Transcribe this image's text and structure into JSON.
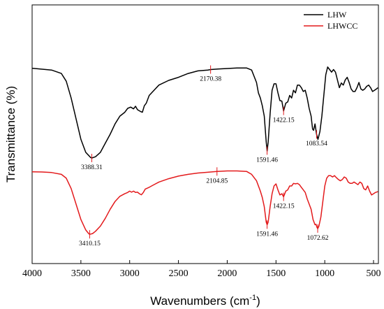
{
  "chart_data": {
    "type": "line",
    "title": "",
    "xlabel": "Wavenumbers (cm",
    "xlabel_sup": "-1",
    "xlabel_suffix": ")",
    "ylabel": "Transmittance (%)",
    "xlim": [
      4000,
      450
    ],
    "x_reversed": true,
    "ylim": [
      0,
      100
    ],
    "y_ticks_labeled": false,
    "x_ticks": [
      "4000",
      "3500",
      "3000",
      "2500",
      "2000",
      "1500",
      "1000",
      "500"
    ],
    "legend_position": "top-right",
    "grid": false,
    "series": [
      {
        "name": "LHW",
        "color": "#000000",
        "points": [
          [
            4000,
            75.5
          ],
          [
            3800,
            74.8
          ],
          [
            3700,
            73.5
          ],
          [
            3650,
            70.5
          ],
          [
            3600,
            64
          ],
          [
            3550,
            56
          ],
          [
            3500,
            48
          ],
          [
            3450,
            43
          ],
          [
            3400,
            41
          ],
          [
            3388,
            40.8
          ],
          [
            3350,
            41.3
          ],
          [
            3300,
            43
          ],
          [
            3250,
            46.5
          ],
          [
            3200,
            50
          ],
          [
            3150,
            54
          ],
          [
            3100,
            57
          ],
          [
            3050,
            58.5
          ],
          [
            3020,
            60
          ],
          [
            2990,
            60.5
          ],
          [
            2960,
            59.8
          ],
          [
            2940,
            60.8
          ],
          [
            2920,
            59.5
          ],
          [
            2890,
            58.8
          ],
          [
            2870,
            58.5
          ],
          [
            2850,
            61
          ],
          [
            2830,
            62
          ],
          [
            2800,
            65
          ],
          [
            2700,
            69
          ],
          [
            2600,
            70.8
          ],
          [
            2500,
            72
          ],
          [
            2400,
            73.5
          ],
          [
            2300,
            74.5
          ],
          [
            2200,
            74.8
          ],
          [
            2170,
            75
          ],
          [
            2100,
            75.2
          ],
          [
            2000,
            75.4
          ],
          [
            1900,
            75.6
          ],
          [
            1800,
            75.6
          ],
          [
            1750,
            74.8
          ],
          [
            1700,
            70
          ],
          [
            1680,
            66
          ],
          [
            1660,
            64
          ],
          [
            1640,
            61
          ],
          [
            1620,
            57
          ],
          [
            1600,
            47
          ],
          [
            1591,
            43.5
          ],
          [
            1580,
            47
          ],
          [
            1560,
            58
          ],
          [
            1540,
            67
          ],
          [
            1520,
            69.5
          ],
          [
            1500,
            69.5
          ],
          [
            1480,
            66
          ],
          [
            1460,
            63
          ],
          [
            1440,
            62.8
          ],
          [
            1422,
            59
          ],
          [
            1400,
            62
          ],
          [
            1380,
            62.5
          ],
          [
            1360,
            65
          ],
          [
            1340,
            64
          ],
          [
            1320,
            67
          ],
          [
            1300,
            66
          ],
          [
            1280,
            69
          ],
          [
            1260,
            69
          ],
          [
            1240,
            68
          ],
          [
            1220,
            66.5
          ],
          [
            1200,
            67
          ],
          [
            1180,
            64
          ],
          [
            1160,
            60
          ],
          [
            1140,
            57
          ],
          [
            1125,
            52
          ],
          [
            1115,
            51.5
          ],
          [
            1100,
            54
          ],
          [
            1084,
            50
          ],
          [
            1070,
            48
          ],
          [
            1050,
            51
          ],
          [
            1030,
            57
          ],
          [
            1010,
            65
          ],
          [
            990,
            73
          ],
          [
            970,
            76
          ],
          [
            950,
            75
          ],
          [
            930,
            74
          ],
          [
            910,
            75
          ],
          [
            890,
            74
          ],
          [
            870,
            71
          ],
          [
            850,
            68
          ],
          [
            830,
            69.8
          ],
          [
            810,
            69
          ],
          [
            790,
            71
          ],
          [
            770,
            72
          ],
          [
            750,
            70
          ],
          [
            730,
            67.5
          ],
          [
            710,
            66.5
          ],
          [
            690,
            66.5
          ],
          [
            670,
            68
          ],
          [
            650,
            70
          ],
          [
            630,
            67.5
          ],
          [
            610,
            67
          ],
          [
            590,
            67.5
          ],
          [
            570,
            68.5
          ],
          [
            550,
            69
          ],
          [
            530,
            68
          ],
          [
            510,
            66.5
          ],
          [
            490,
            67
          ],
          [
            470,
            67.5
          ],
          [
            455,
            68
          ]
        ]
      },
      {
        "name": "LHWCC",
        "color": "#e31a1c",
        "points": [
          [
            4000,
            35.5
          ],
          [
            3900,
            35.4
          ],
          [
            3800,
            35.2
          ],
          [
            3700,
            34.5
          ],
          [
            3650,
            33
          ],
          [
            3600,
            29
          ],
          [
            3550,
            23
          ],
          [
            3500,
            17
          ],
          [
            3450,
            13
          ],
          [
            3420,
            11.6
          ],
          [
            3410,
            11.3
          ],
          [
            3380,
            11.6
          ],
          [
            3350,
            12.5
          ],
          [
            3300,
            14.5
          ],
          [
            3250,
            17.5
          ],
          [
            3200,
            21
          ],
          [
            3150,
            24
          ],
          [
            3100,
            26
          ],
          [
            3050,
            27
          ],
          [
            3020,
            27.5
          ],
          [
            3000,
            28
          ],
          [
            2980,
            27.6
          ],
          [
            2960,
            28
          ],
          [
            2940,
            27.5
          ],
          [
            2920,
            27.6
          ],
          [
            2900,
            27
          ],
          [
            2880,
            26.6
          ],
          [
            2860,
            27.5
          ],
          [
            2840,
            28.8
          ],
          [
            2800,
            29.5
          ],
          [
            2750,
            30.5
          ],
          [
            2700,
            31.5
          ],
          [
            2600,
            32.8
          ],
          [
            2500,
            33.8
          ],
          [
            2400,
            34.5
          ],
          [
            2300,
            35
          ],
          [
            2200,
            35.3
          ],
          [
            2105,
            35.6
          ],
          [
            2000,
            35.8
          ],
          [
            1900,
            35.8
          ],
          [
            1800,
            35.6
          ],
          [
            1750,
            34.5
          ],
          [
            1700,
            32
          ],
          [
            1660,
            28
          ],
          [
            1640,
            25.5
          ],
          [
            1620,
            22
          ],
          [
            1600,
            16
          ],
          [
            1591,
            15
          ],
          [
            1580,
            16
          ],
          [
            1560,
            22
          ],
          [
            1540,
            27
          ],
          [
            1520,
            30
          ],
          [
            1500,
            30.8
          ],
          [
            1480,
            28.5
          ],
          [
            1460,
            26.5
          ],
          [
            1440,
            27
          ],
          [
            1422,
            25.8
          ],
          [
            1400,
            28
          ],
          [
            1380,
            28.5
          ],
          [
            1360,
            30
          ],
          [
            1340,
            30
          ],
          [
            1320,
            31
          ],
          [
            1300,
            30.8
          ],
          [
            1280,
            31
          ],
          [
            1260,
            30.5
          ],
          [
            1240,
            29.5
          ],
          [
            1220,
            28.5
          ],
          [
            1200,
            27.5
          ],
          [
            1180,
            25
          ],
          [
            1160,
            23
          ],
          [
            1140,
            21
          ],
          [
            1120,
            17
          ],
          [
            1100,
            15
          ],
          [
            1090,
            15.2
          ],
          [
            1080,
            14
          ],
          [
            1072,
            13.5
          ],
          [
            1060,
            14.5
          ],
          [
            1040,
            18
          ],
          [
            1020,
            24
          ],
          [
            1000,
            30
          ],
          [
            980,
            33
          ],
          [
            960,
            34
          ],
          [
            940,
            34
          ],
          [
            920,
            33.5
          ],
          [
            900,
            34
          ],
          [
            880,
            33.2
          ],
          [
            860,
            32.5
          ],
          [
            840,
            32
          ],
          [
            820,
            32.5
          ],
          [
            800,
            33.5
          ],
          [
            780,
            33
          ],
          [
            760,
            31.5
          ],
          [
            740,
            31
          ],
          [
            720,
            31
          ],
          [
            700,
            31.5
          ],
          [
            680,
            31
          ],
          [
            660,
            30.5
          ],
          [
            640,
            31.5
          ],
          [
            620,
            31
          ],
          [
            600,
            29
          ],
          [
            580,
            28.5
          ],
          [
            560,
            30
          ],
          [
            540,
            28
          ],
          [
            520,
            26.5
          ],
          [
            500,
            27
          ],
          [
            480,
            27.5
          ],
          [
            455,
            27.8
          ]
        ]
      }
    ],
    "annotations": [
      {
        "series": 0,
        "x": 3388.31,
        "label": "3388.31"
      },
      {
        "series": 0,
        "x": 2170.38,
        "label": "2170.38"
      },
      {
        "series": 0,
        "x": 1591.46,
        "label": "1591.46"
      },
      {
        "series": 0,
        "x": 1422.15,
        "label": "1422.15"
      },
      {
        "series": 0,
        "x": 1083.54,
        "label": "1083.54"
      },
      {
        "series": 1,
        "x": 3410.15,
        "label": "3410.15"
      },
      {
        "series": 1,
        "x": 2104.85,
        "label": "2104.85"
      },
      {
        "series": 1,
        "x": 1591.46,
        "label": "1591.46"
      },
      {
        "series": 1,
        "x": 1422.15,
        "label": "1422.15"
      },
      {
        "series": 1,
        "x": 1072.62,
        "label": "1072.62"
      }
    ]
  }
}
